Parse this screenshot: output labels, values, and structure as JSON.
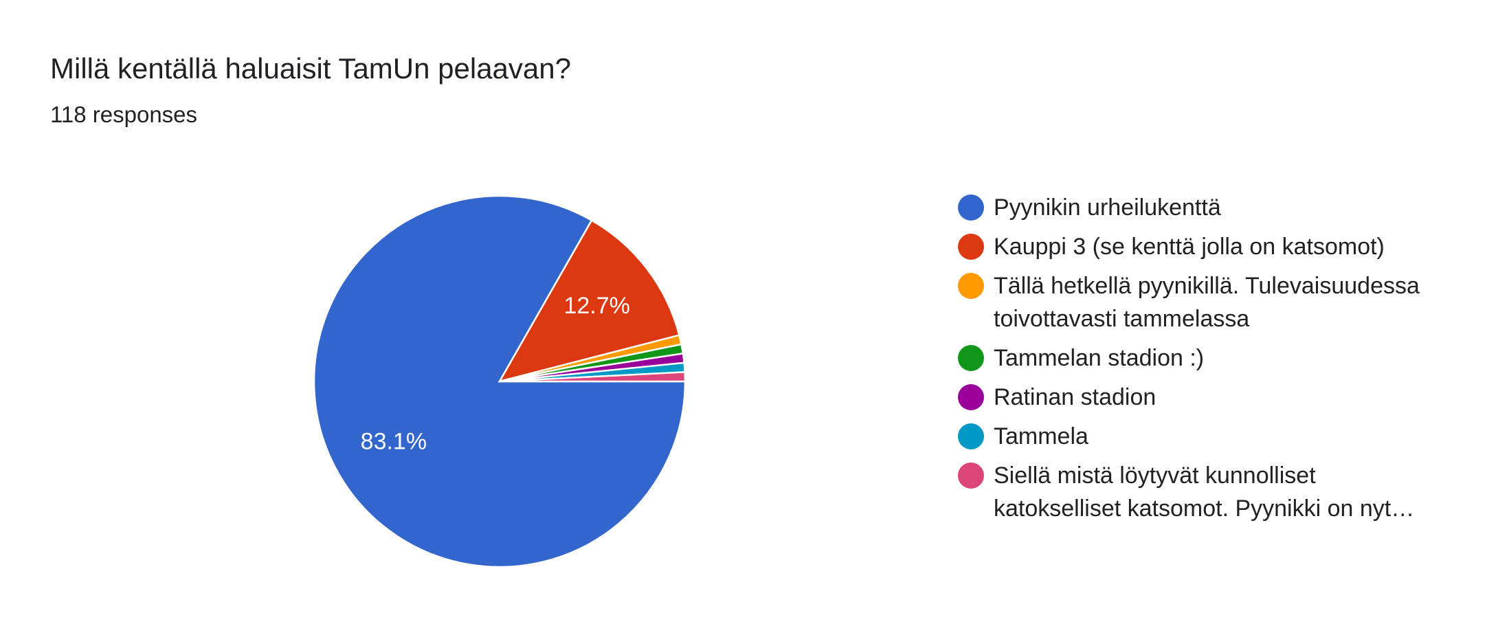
{
  "chart_data": {
    "type": "pie",
    "title": "Millä kentällä haluaisit TamUn pelaavan?",
    "subtitle": "118 responses",
    "categories": [
      "Pyynikin urheilukenttä",
      "Kauppi 3 (se kenttä jolla on katsomot)",
      "Tällä hetkellä pyynikillä. Tulevaisuudessa toivottavasti tammelassa",
      "Tammelan stadion :)",
      "Ratinan stadion",
      "Tammela",
      "Siellä mistä löytyvät kunnolliset katokselliset katsomot. Pyynikki on nyt…"
    ],
    "values": [
      83.1,
      12.7,
      0.8,
      0.8,
      0.8,
      0.8,
      0.8
    ],
    "value_labels": [
      "83.1%",
      "12.7%",
      null,
      null,
      null,
      null,
      null
    ],
    "colors": [
      "#3366cc",
      "#dc3912",
      "#ff9900",
      "#109618",
      "#990099",
      "#0099c6",
      "#dd4477"
    ]
  }
}
